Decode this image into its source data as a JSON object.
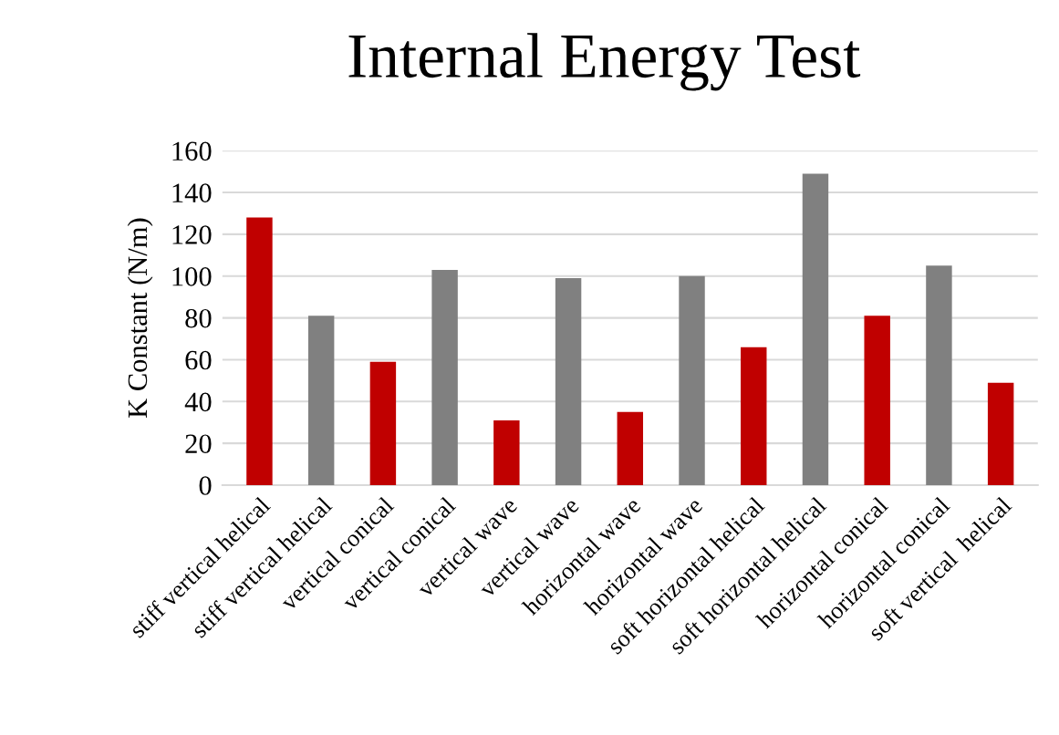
{
  "chart_data": {
    "type": "bar",
    "title": "Internal Energy Test",
    "ylabel": "K Constant (N/m)",
    "categories": [
      "stiff vertical helical",
      "stiff vertical helical",
      "vertical conical",
      "vertical conical",
      "vertical wave",
      "vertical wave",
      "horizontal wave",
      "horizontal wave",
      "soft horizontal helical",
      "soft horizontal helical",
      "horizontal conical",
      "horizontal conical",
      "soft vertical  helical"
    ],
    "values": [
      128,
      81,
      59,
      103,
      31,
      99,
      35,
      100,
      66,
      149,
      81,
      105,
      49
    ],
    "colors": [
      "#c00000",
      "#808080",
      "#c00000",
      "#808080",
      "#c00000",
      "#808080",
      "#c00000",
      "#808080",
      "#c00000",
      "#808080",
      "#c00000",
      "#808080",
      "#c00000"
    ],
    "ylim": [
      0,
      160
    ],
    "yticks": [
      0,
      20,
      40,
      60,
      80,
      100,
      120,
      140,
      160
    ],
    "grid": "y"
  }
}
